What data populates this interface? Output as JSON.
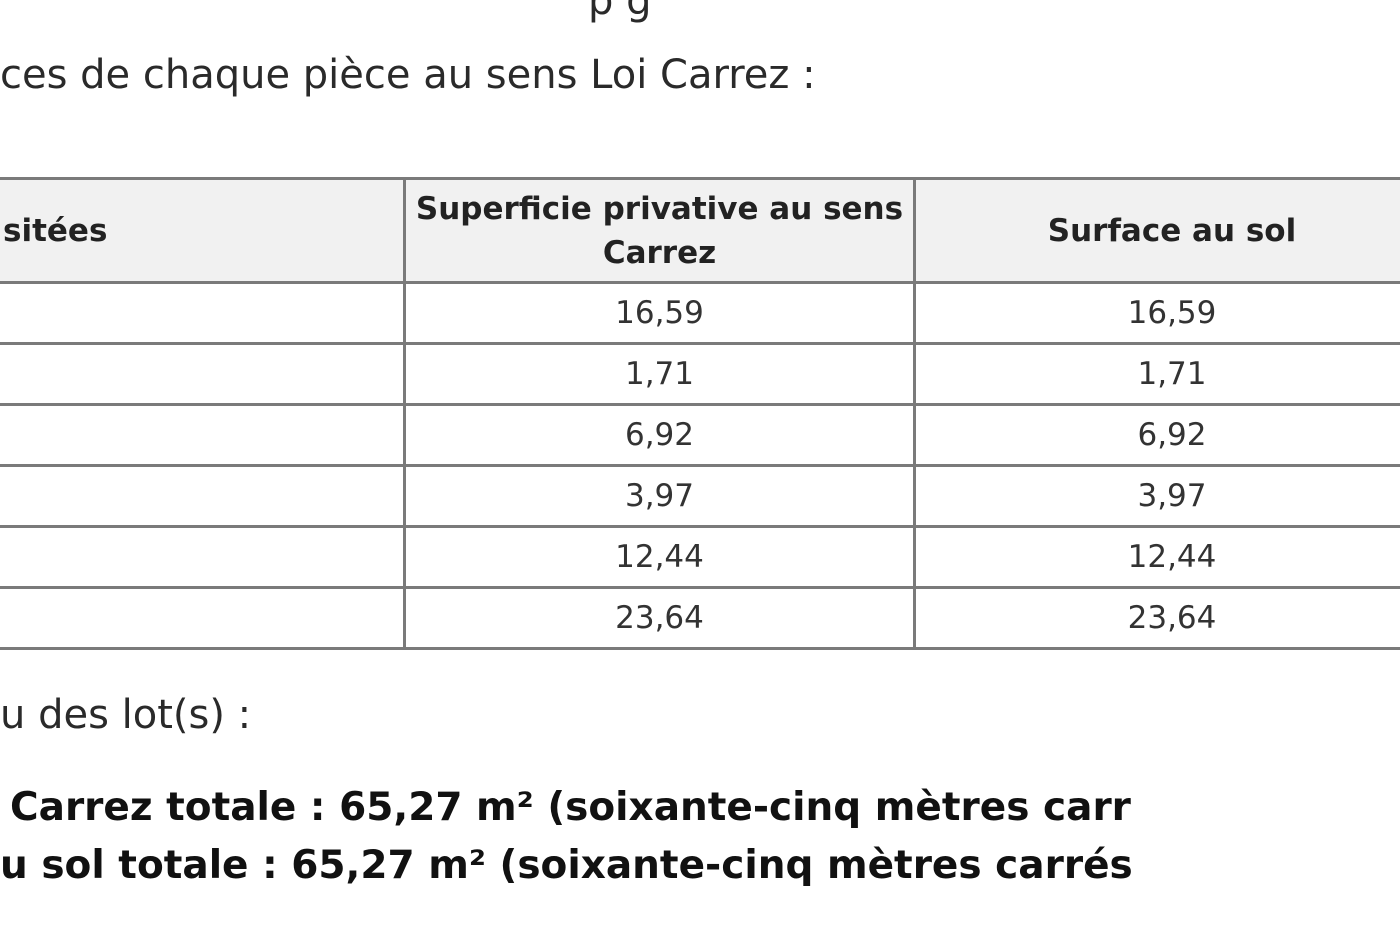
{
  "fragment_top": "p g",
  "intro": "ces de chaque pièce au sens Loi Carrez :",
  "table": {
    "headers": [
      "sitées",
      "Superficie privative au sens Carrez",
      "Surface au sol"
    ],
    "rows": [
      [
        "",
        "16,59",
        "16,59"
      ],
      [
        "",
        "1,71",
        "1,71"
      ],
      [
        "",
        "6,92",
        "6,92"
      ],
      [
        "",
        "3,97",
        "3,97"
      ],
      [
        "",
        "12,44",
        "12,44"
      ],
      [
        "",
        "23,64",
        "23,64"
      ]
    ]
  },
  "lots_label": "u des lot(s) :",
  "totals": {
    "carrez": "Carrez totale : 65,27 m² (soixante-cinq mètres carr",
    "sol": "u sol totale : 65,27 m² (soixante-cinq mètres carrés"
  }
}
